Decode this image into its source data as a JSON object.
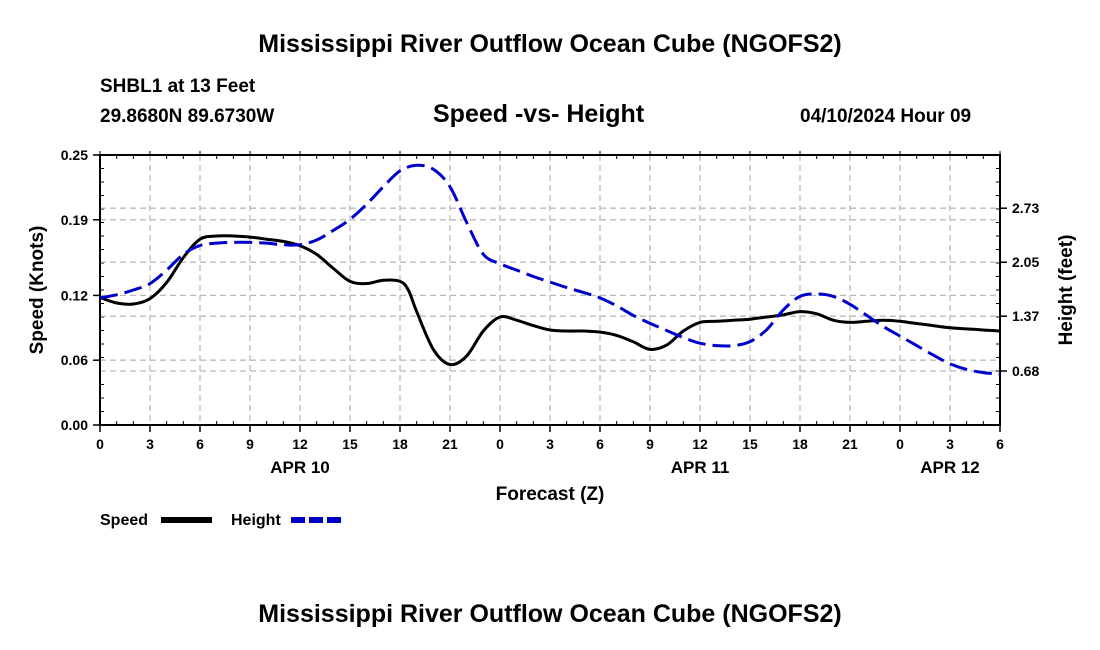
{
  "header": {
    "title": "Mississippi River Outflow Ocean Cube (NGOFS2)",
    "station": "SHBL1 at 13 Feet",
    "location": "29.8680N  89.6730W",
    "subtitle": "Speed -vs- Height",
    "datetime": "04/10/2024 Hour 09",
    "footer_title": "Mississippi River Outflow Ocean Cube (NGOFS2)"
  },
  "chart_data": {
    "type": "line",
    "title": "Speed -vs- Height",
    "xlabel": "Forecast (Z)",
    "ylabel_left": "Speed (Knots)",
    "ylabel_right": "Height (feet)",
    "x_range_hours": [
      0,
      54
    ],
    "x_ticks": [
      {
        "hour": 0,
        "label": "0"
      },
      {
        "hour": 3,
        "label": "3"
      },
      {
        "hour": 6,
        "label": "6"
      },
      {
        "hour": 9,
        "label": "9"
      },
      {
        "hour": 12,
        "label": "12"
      },
      {
        "hour": 15,
        "label": "15"
      },
      {
        "hour": 18,
        "label": "18"
      },
      {
        "hour": 21,
        "label": "21"
      },
      {
        "hour": 24,
        "label": "0"
      },
      {
        "hour": 27,
        "label": "3"
      },
      {
        "hour": 30,
        "label": "6"
      },
      {
        "hour": 33,
        "label": "9"
      },
      {
        "hour": 36,
        "label": "12"
      },
      {
        "hour": 39,
        "label": "15"
      },
      {
        "hour": 42,
        "label": "18"
      },
      {
        "hour": 45,
        "label": "21"
      },
      {
        "hour": 48,
        "label": "0"
      },
      {
        "hour": 51,
        "label": "3"
      },
      {
        "hour": 54,
        "label": "6"
      }
    ],
    "date_labels": [
      {
        "hour": 12,
        "label": "APR 10"
      },
      {
        "hour": 36,
        "label": "APR 11"
      },
      {
        "hour": 51,
        "label": "APR 12"
      }
    ],
    "y_left": {
      "min": 0.0,
      "max": 0.25,
      "ticks": [
        0.0,
        0.06,
        0.12,
        0.19,
        0.25
      ],
      "tick_labels": [
        "0.00",
        "0.06",
        "0.12",
        "0.19",
        "0.25"
      ]
    },
    "y_right": {
      "min": 0.0,
      "max": 3.4,
      "ticks": [
        0.68,
        1.37,
        2.05,
        2.73
      ],
      "tick_labels": [
        "0.68",
        "1.37",
        "2.05",
        "2.73"
      ]
    },
    "grid": true,
    "legend_position": "bottom-left",
    "series": [
      {
        "name": "Speed",
        "axis": "left",
        "color": "#000000",
        "dash": "solid",
        "hours": [
          0,
          1,
          2,
          3,
          4,
          5,
          6,
          7,
          8,
          9,
          10,
          11,
          12,
          13,
          14,
          15,
          16,
          17,
          18,
          18.5,
          19,
          20,
          21,
          22,
          23,
          24,
          25,
          26,
          27,
          28,
          29,
          30,
          31,
          32,
          33,
          34,
          35,
          36,
          37,
          38,
          39,
          40,
          41,
          42,
          43,
          44,
          45,
          46,
          47,
          48,
          49,
          50,
          51,
          52,
          53,
          54
        ],
        "values": [
          0.118,
          0.113,
          0.112,
          0.117,
          0.132,
          0.155,
          0.172,
          0.175,
          0.175,
          0.174,
          0.172,
          0.17,
          0.166,
          0.158,
          0.145,
          0.133,
          0.131,
          0.134,
          0.133,
          0.125,
          0.105,
          0.07,
          0.056,
          0.064,
          0.087,
          0.1,
          0.097,
          0.092,
          0.088,
          0.087,
          0.087,
          0.086,
          0.083,
          0.077,
          0.07,
          0.074,
          0.087,
          0.095,
          0.096,
          0.097,
          0.098,
          0.1,
          0.102,
          0.105,
          0.103,
          0.097,
          0.095,
          0.096,
          0.097,
          0.096,
          0.094,
          0.092,
          0.09,
          0.089,
          0.088,
          0.087
        ]
      },
      {
        "name": "Height",
        "axis": "right",
        "color": "#0000cc",
        "dash": "dashed",
        "hours": [
          0,
          1,
          2,
          3,
          4,
          5,
          6,
          7,
          8,
          9,
          10,
          11,
          12,
          13,
          14,
          15,
          16,
          17,
          18,
          19,
          20,
          21,
          22,
          23,
          24,
          25,
          26,
          27,
          28,
          29,
          30,
          31,
          32,
          33,
          34,
          35,
          36,
          37,
          38,
          39,
          40,
          41,
          42,
          43,
          44,
          45,
          46,
          47,
          48,
          49,
          50,
          51,
          52,
          53,
          54
        ],
        "values": [
          1.6,
          1.64,
          1.7,
          1.78,
          1.95,
          2.15,
          2.26,
          2.29,
          2.3,
          2.3,
          2.29,
          2.27,
          2.27,
          2.33,
          2.45,
          2.59,
          2.78,
          3.0,
          3.2,
          3.27,
          3.22,
          3.0,
          2.55,
          2.15,
          2.03,
          1.95,
          1.87,
          1.8,
          1.73,
          1.67,
          1.6,
          1.5,
          1.38,
          1.28,
          1.19,
          1.1,
          1.03,
          1.0,
          1.0,
          1.05,
          1.2,
          1.45,
          1.62,
          1.65,
          1.62,
          1.52,
          1.38,
          1.24,
          1.12,
          1.0,
          0.88,
          0.77,
          0.7,
          0.66,
          0.64
        ]
      }
    ]
  }
}
